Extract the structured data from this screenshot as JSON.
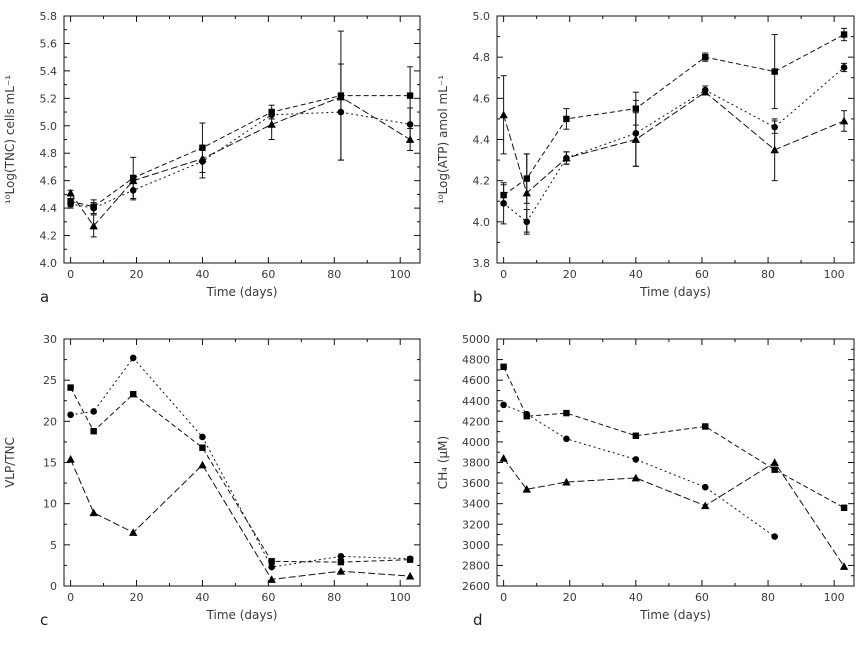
{
  "figure": {
    "background": "#ffffff",
    "ink_color": "#111111",
    "text_color": "#3a3a3a",
    "marker_color": "#000000"
  },
  "chart_data": [
    {
      "type": "line",
      "panel_label": "a",
      "xlabel": "Time (days)",
      "ylabel": "¹⁰Log(TNC) cells mL⁻¹",
      "x": [
        0,
        7,
        19,
        40,
        61,
        82,
        103
      ],
      "xlim": [
        -2,
        106
      ],
      "xticks": [
        0,
        20,
        40,
        60,
        80,
        100
      ],
      "xtick_minor": 10,
      "ylim": [
        4.0,
        5.8
      ],
      "ytick_step": 0.2,
      "ytick_minor": 0.1,
      "ytick_decimals": 1,
      "grid": false,
      "legend": null,
      "series": [
        {
          "name": "squares",
          "marker": "square",
          "dash": "5 3",
          "values": [
            4.45,
            4.41,
            4.62,
            4.84,
            5.1,
            5.22,
            5.22
          ],
          "errors": [
            0.04,
            0.05,
            0.15,
            0.18,
            0.05,
            0.47,
            0.21
          ]
        },
        {
          "name": "circles",
          "marker": "circle",
          "dash": "2 3",
          "values": [
            4.43,
            4.4,
            4.53,
            4.74,
            5.08,
            5.1,
            5.01
          ],
          "errors": [
            0.03,
            0.04,
            0.07,
            0.12,
            0.03,
            0.35,
            0.12
          ]
        },
        {
          "name": "triangles",
          "marker": "triangle",
          "dash": "7 3",
          "values": [
            4.51,
            4.27,
            4.6,
            4.76,
            5.01,
            5.21,
            4.9
          ],
          "errors": [
            0.02,
            0.08,
            0,
            0,
            0.11,
            0,
            0.08
          ]
        }
      ]
    },
    {
      "type": "line",
      "panel_label": "b",
      "xlabel": "Time (days)",
      "ylabel": "¹⁰Log(ATP) amol mL⁻¹",
      "x": [
        0,
        7,
        19,
        40,
        61,
        82,
        103
      ],
      "xlim": [
        -2,
        106
      ],
      "xticks": [
        0,
        20,
        40,
        60,
        80,
        100
      ],
      "xtick_minor": 10,
      "ylim": [
        3.8,
        5.0
      ],
      "ytick_step": 0.2,
      "ytick_minor": 0.1,
      "ytick_decimals": 1,
      "grid": false,
      "legend": null,
      "series": [
        {
          "name": "squares",
          "marker": "square",
          "dash": "5 3",
          "values": [
            4.13,
            4.21,
            4.5,
            4.55,
            4.8,
            4.73,
            4.91
          ],
          "errors": [
            0.05,
            0.12,
            0.05,
            0.08,
            0.02,
            0.18,
            0.03
          ]
        },
        {
          "name": "circles",
          "marker": "circle",
          "dash": "2 3",
          "values": [
            4.09,
            4.0,
            4.31,
            4.43,
            4.64,
            4.46,
            4.75
          ],
          "errors": [
            0.1,
            0.06,
            0.03,
            0.16,
            0.02,
            0.03,
            0.02
          ]
        },
        {
          "name": "triangles",
          "marker": "triangle",
          "dash": "7 3",
          "values": [
            4.52,
            4.14,
            4.31,
            4.4,
            4.63,
            4.35,
            4.49
          ],
          "errors": [
            0.19,
            0.19,
            0.03,
            0.13,
            0,
            0.15,
            0.05
          ]
        }
      ]
    },
    {
      "type": "line",
      "panel_label": "c",
      "xlabel": "Time (days)",
      "ylabel": "VLP/TNC",
      "x": [
        0,
        7,
        19,
        40,
        61,
        82,
        103
      ],
      "xlim": [
        -2,
        106
      ],
      "xticks": [
        0,
        20,
        40,
        60,
        80,
        100
      ],
      "xtick_minor": 10,
      "ylim": [
        0,
        30
      ],
      "ytick_step": 5,
      "ytick_minor": 2.5,
      "ytick_decimals": 0,
      "grid": false,
      "legend": null,
      "series": [
        {
          "name": "squares",
          "marker": "square",
          "dash": "5 3",
          "values": [
            24.1,
            18.8,
            23.3,
            16.8,
            3.0,
            2.9,
            3.2
          ]
        },
        {
          "name": "circles",
          "marker": "circle",
          "dash": "2 3",
          "values": [
            20.8,
            21.2,
            27.7,
            18.1,
            2.3,
            3.6,
            3.3
          ]
        },
        {
          "name": "triangles",
          "marker": "triangle",
          "dash": "7 3",
          "values": [
            15.4,
            8.9,
            6.5,
            14.7,
            0.8,
            1.8,
            1.2
          ]
        }
      ]
    },
    {
      "type": "line",
      "panel_label": "d",
      "xlabel": "Time (days)",
      "ylabel": "CH₄ (μM)",
      "x": [
        0,
        7,
        19,
        40,
        61,
        82,
        103
      ],
      "xlim": [
        -2,
        106
      ],
      "xticks": [
        0,
        20,
        40,
        60,
        80,
        100
      ],
      "xtick_minor": 10,
      "ylim": [
        2600,
        5000
      ],
      "ytick_step": 200,
      "ytick_minor": 100,
      "ytick_decimals": 0,
      "grid": false,
      "legend": null,
      "series": [
        {
          "name": "squares",
          "marker": "square",
          "dash": "5 3",
          "values": [
            4730,
            4250,
            4280,
            4060,
            4150,
            3730,
            3360
          ]
        },
        {
          "name": "circles",
          "marker": "circle",
          "dash": "2 3",
          "values": [
            4360,
            4270,
            4030,
            3830,
            3560,
            3080,
            null
          ]
        },
        {
          "name": "triangles",
          "marker": "triangle",
          "dash": "7 3",
          "values": [
            3840,
            3540,
            3610,
            3650,
            3380,
            3800,
            2790
          ]
        }
      ]
    }
  ]
}
